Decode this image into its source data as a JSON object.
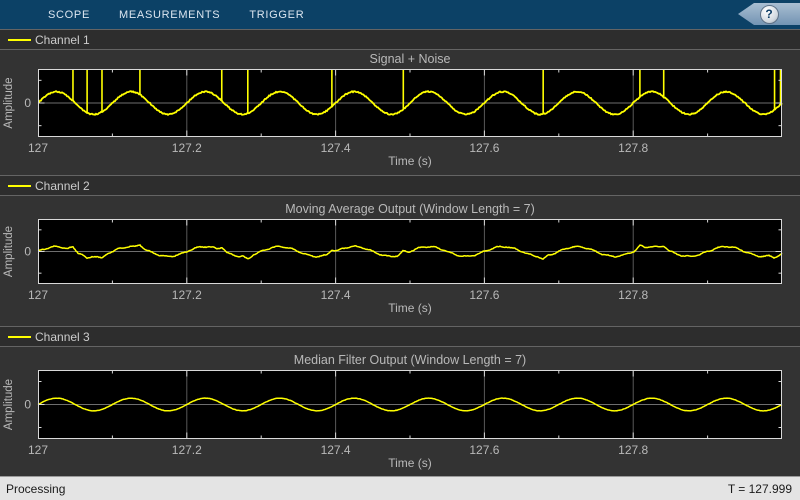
{
  "toolbar": {
    "tabs": [
      {
        "label": "SCOPE"
      },
      {
        "label": "MEASUREMENTS"
      },
      {
        "label": "TRIGGER"
      }
    ],
    "help_glyph": "?"
  },
  "panels": [
    {
      "legend": "Channel 1"
    },
    {
      "legend": "Channel 2"
    },
    {
      "legend": "Channel 3"
    }
  ],
  "status_bar": {
    "left": "Processing",
    "right": "T = 127.999"
  },
  "colors": {
    "signal": "#ffff00",
    "toolbar_bg": "#0c4166",
    "panel_bg": "#333333",
    "axes_bg": "#000000",
    "axes_border": "#d9d9d9",
    "grid": "#5a5a5a",
    "zero_line": "#6e6e6e",
    "text_gray": "#b9b9b9",
    "legend_text": "#cccccc",
    "status_bg": "#e4e4e4",
    "status_text": "#1a1a1a"
  },
  "chart_data": [
    {
      "type": "line",
      "title": "Signal + Noise",
      "xlabel": "Time (s)",
      "ylabel": "Amplitude",
      "xlim": [
        127,
        128
      ],
      "ylim": [
        -3,
        3
      ],
      "xticks": [
        127,
        127.2,
        127.4,
        127.6,
        127.8
      ],
      "xtick_labels": [
        "127",
        "127.2",
        "127.4",
        "127.6",
        "127.8"
      ],
      "minor_tick_step": 0.1,
      "ytick_value": 0,
      "ytick_label": "0",
      "grid": true,
      "legend_position": "top-strip",
      "series": [
        {
          "name": "Channel 1",
          "color": "#ffff00",
          "signal": {
            "kind": "sine_plus_impulse_noise",
            "frequency_hz": 10,
            "amplitude": 1,
            "noise_amplitude": 0.05,
            "impulse_times": [
              127.047,
              127.066,
              127.086,
              127.137,
              127.247,
              127.282,
              127.395,
              127.491,
              127.679,
              127.809,
              127.841,
              127.99,
              127.998
            ],
            "impulse_height": 4
          }
        }
      ]
    },
    {
      "type": "line",
      "title": "Moving Average Output (Window Length = 7)",
      "xlabel": "Time (s)",
      "ylabel": "Amplitude",
      "xlim": [
        127,
        128
      ],
      "ylim": [
        -3,
        3
      ],
      "xticks": [
        127,
        127.2,
        127.4,
        127.6,
        127.8
      ],
      "xtick_labels": [
        "127",
        "127.2",
        "127.4",
        "127.6",
        "127.8"
      ],
      "minor_tick_step": 0.1,
      "ytick_value": 0,
      "ytick_label": "0",
      "grid": true,
      "legend_position": "top-strip",
      "series": [
        {
          "name": "Channel 2",
          "color": "#ffff00",
          "signal": {
            "kind": "moving_average_output",
            "window_length": 7,
            "frequency_hz": 10,
            "amplitude": 0.45,
            "ripple_amplitude": 0.05,
            "noise_amplitude": 0.03,
            "bump_height": 0.3,
            "bump_width": 0.007,
            "bump_times": [
              127.047,
              127.066,
              127.086,
              127.137,
              127.247,
              127.282,
              127.395,
              127.491,
              127.679,
              127.809,
              127.841,
              127.99,
              127.998
            ],
            "bump_signs": [
              1,
              -1,
              -1,
              1,
              1,
              -1,
              1,
              1,
              -1,
              1,
              1,
              -1,
              -1
            ]
          }
        }
      ]
    },
    {
      "type": "line",
      "title": "Median Filter Output (Window Length = 7)",
      "xlabel": "Time (s)",
      "ylabel": "Amplitude",
      "xlim": [
        127,
        128
      ],
      "ylim": [
        -3,
        3
      ],
      "xticks": [
        127,
        127.2,
        127.4,
        127.6,
        127.8
      ],
      "xtick_labels": [
        "127",
        "127.2",
        "127.4",
        "127.6",
        "127.8"
      ],
      "minor_tick_step": 0.1,
      "ytick_value": 0,
      "ytick_label": "0",
      "grid": true,
      "legend_position": "top-strip",
      "series": [
        {
          "name": "Channel 3",
          "color": "#ffff00",
          "signal": {
            "kind": "median_filter_output",
            "window_length": 7,
            "frequency_hz": 10,
            "amplitude": 0.55,
            "noise_amplitude": 0.015
          }
        }
      ]
    }
  ]
}
